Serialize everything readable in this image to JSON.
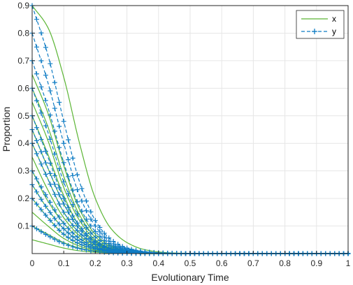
{
  "chart_data": {
    "type": "line",
    "xlabel": "Evolutionary Time",
    "ylabel": "Proportion",
    "xlim": [
      0,
      1
    ],
    "ylim": [
      0,
      0.9
    ],
    "xticks": [
      "0",
      "0.1",
      "0.2",
      "0.3",
      "0.4",
      "0.5",
      "0.6",
      "0.7",
      "0.8",
      "0.9",
      "1"
    ],
    "yticks": [
      "0.1",
      "0.2",
      "0.3",
      "0.4",
      "0.5",
      "0.6",
      "0.7",
      "0.8",
      "0.9"
    ],
    "grid": true,
    "legend": {
      "placement": "top-right",
      "entries": [
        "x",
        "y"
      ]
    },
    "x_samples": [
      0,
      0.05,
      0.1,
      0.15,
      0.2,
      0.25,
      0.3,
      0.35,
      0.4,
      0.45,
      0.5,
      1.0
    ],
    "series": [
      {
        "name": "x",
        "style": "solid",
        "color": "#5bb534",
        "curves": [
          [
            0.9,
            0.82,
            0.64,
            0.4,
            0.2,
            0.09,
            0.04,
            0.016,
            0.006,
            0.002,
            0.001,
            0.0
          ],
          [
            0.65,
            0.51,
            0.32,
            0.16,
            0.07,
            0.028,
            0.011,
            0.004,
            0.002,
            0.001,
            0.0,
            0.0
          ],
          [
            0.6,
            0.46,
            0.28,
            0.14,
            0.06,
            0.024,
            0.009,
            0.004,
            0.001,
            0.0,
            0.0,
            0.0
          ],
          [
            0.55,
            0.41,
            0.24,
            0.12,
            0.05,
            0.02,
            0.008,
            0.003,
            0.001,
            0.0,
            0.0,
            0.0
          ],
          [
            0.5,
            0.36,
            0.21,
            0.1,
            0.045,
            0.018,
            0.007,
            0.003,
            0.001,
            0.0,
            0.0,
            0.0
          ],
          [
            0.45,
            0.31,
            0.18,
            0.09,
            0.04,
            0.016,
            0.006,
            0.002,
            0.001,
            0.0,
            0.0,
            0.0
          ],
          [
            0.4,
            0.27,
            0.15,
            0.075,
            0.034,
            0.014,
            0.005,
            0.002,
            0.001,
            0.0,
            0.0,
            0.0
          ],
          [
            0.35,
            0.23,
            0.13,
            0.065,
            0.03,
            0.012,
            0.005,
            0.002,
            0.0,
            0.0,
            0.0,
            0.0
          ],
          [
            0.3,
            0.19,
            0.11,
            0.055,
            0.025,
            0.01,
            0.004,
            0.002,
            0.0,
            0.0,
            0.0,
            0.0
          ],
          [
            0.25,
            0.16,
            0.09,
            0.045,
            0.02,
            0.008,
            0.003,
            0.001,
            0.0,
            0.0,
            0.0,
            0.0
          ],
          [
            0.2,
            0.13,
            0.07,
            0.035,
            0.016,
            0.006,
            0.003,
            0.001,
            0.0,
            0.0,
            0.0,
            0.0
          ],
          [
            0.15,
            0.1,
            0.055,
            0.027,
            0.012,
            0.005,
            0.002,
            0.001,
            0.0,
            0.0,
            0.0,
            0.0
          ],
          [
            0.1,
            0.07,
            0.04,
            0.02,
            0.009,
            0.004,
            0.001,
            0.0,
            0.0,
            0.0,
            0.0,
            0.0
          ],
          [
            0.05,
            0.035,
            0.02,
            0.01,
            0.005,
            0.002,
            0.001,
            0.0,
            0.0,
            0.0,
            0.0,
            0.0
          ]
        ]
      },
      {
        "name": "y",
        "style": "dashed-plus",
        "color": "#0f7cc4",
        "curves": [
          [
            0.9,
            0.72,
            0.48,
            0.26,
            0.12,
            0.05,
            0.02,
            0.008,
            0.003,
            0.001,
            0.0,
            0.0
          ],
          [
            0.8,
            0.62,
            0.4,
            0.21,
            0.1,
            0.04,
            0.016,
            0.006,
            0.002,
            0.001,
            0.0,
            0.0
          ],
          [
            0.7,
            0.53,
            0.33,
            0.17,
            0.08,
            0.032,
            0.013,
            0.005,
            0.002,
            0.001,
            0.0,
            0.0
          ],
          [
            0.6,
            0.44,
            0.26,
            0.13,
            0.06,
            0.025,
            0.01,
            0.004,
            0.001,
            0.0,
            0.0,
            0.0
          ],
          [
            0.5,
            0.35,
            0.2,
            0.1,
            0.045,
            0.019,
            0.008,
            0.003,
            0.001,
            0.0,
            0.0,
            0.0
          ],
          [
            0.45,
            0.31,
            0.18,
            0.09,
            0.04,
            0.016,
            0.007,
            0.003,
            0.001,
            0.0,
            0.0,
            0.0
          ],
          [
            0.4,
            0.27,
            0.15,
            0.075,
            0.034,
            0.014,
            0.006,
            0.002,
            0.001,
            0.0,
            0.0,
            0.0
          ],
          [
            0.3,
            0.2,
            0.11,
            0.055,
            0.025,
            0.01,
            0.004,
            0.002,
            0.0,
            0.0,
            0.0,
            0.0
          ],
          [
            0.25,
            0.16,
            0.09,
            0.045,
            0.02,
            0.008,
            0.003,
            0.001,
            0.0,
            0.0,
            0.0,
            0.0
          ],
          [
            0.2,
            0.13,
            0.07,
            0.035,
            0.016,
            0.006,
            0.003,
            0.001,
            0.0,
            0.0,
            0.0,
            0.0
          ],
          [
            0.1,
            0.065,
            0.036,
            0.018,
            0.008,
            0.003,
            0.001,
            0.0,
            0.0,
            0.0,
            0.0,
            0.0
          ]
        ]
      }
    ]
  }
}
